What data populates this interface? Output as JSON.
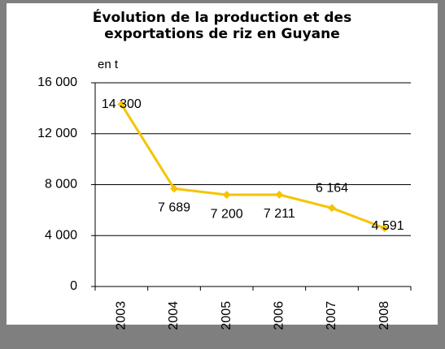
{
  "chart_data": {
    "type": "line",
    "title": [
      "Évolution de la production et des",
      "exportations de riz en Guyane"
    ],
    "y_unit_label": "en t",
    "categories": [
      "2003",
      "2004",
      "2005",
      "2006",
      "2007",
      "2008"
    ],
    "series": [
      {
        "name": "Production",
        "color": "#f5c400",
        "values": [
          14300,
          7689,
          7200,
          7211,
          6164,
          4591
        ],
        "value_labels": [
          "14 300",
          "7 689",
          "7 200",
          "7 211",
          "6 164",
          "4 591"
        ]
      }
    ],
    "ylim": [
      0,
      16000
    ],
    "yticks": [
      {
        "value": 0,
        "label": "0"
      },
      {
        "value": 4000,
        "label": "4 000"
      },
      {
        "value": 8000,
        "label": "8 000"
      },
      {
        "value": 12000,
        "label": "12 000"
      },
      {
        "value": 16000,
        "label": "16 000"
      }
    ],
    "grid": true
  }
}
